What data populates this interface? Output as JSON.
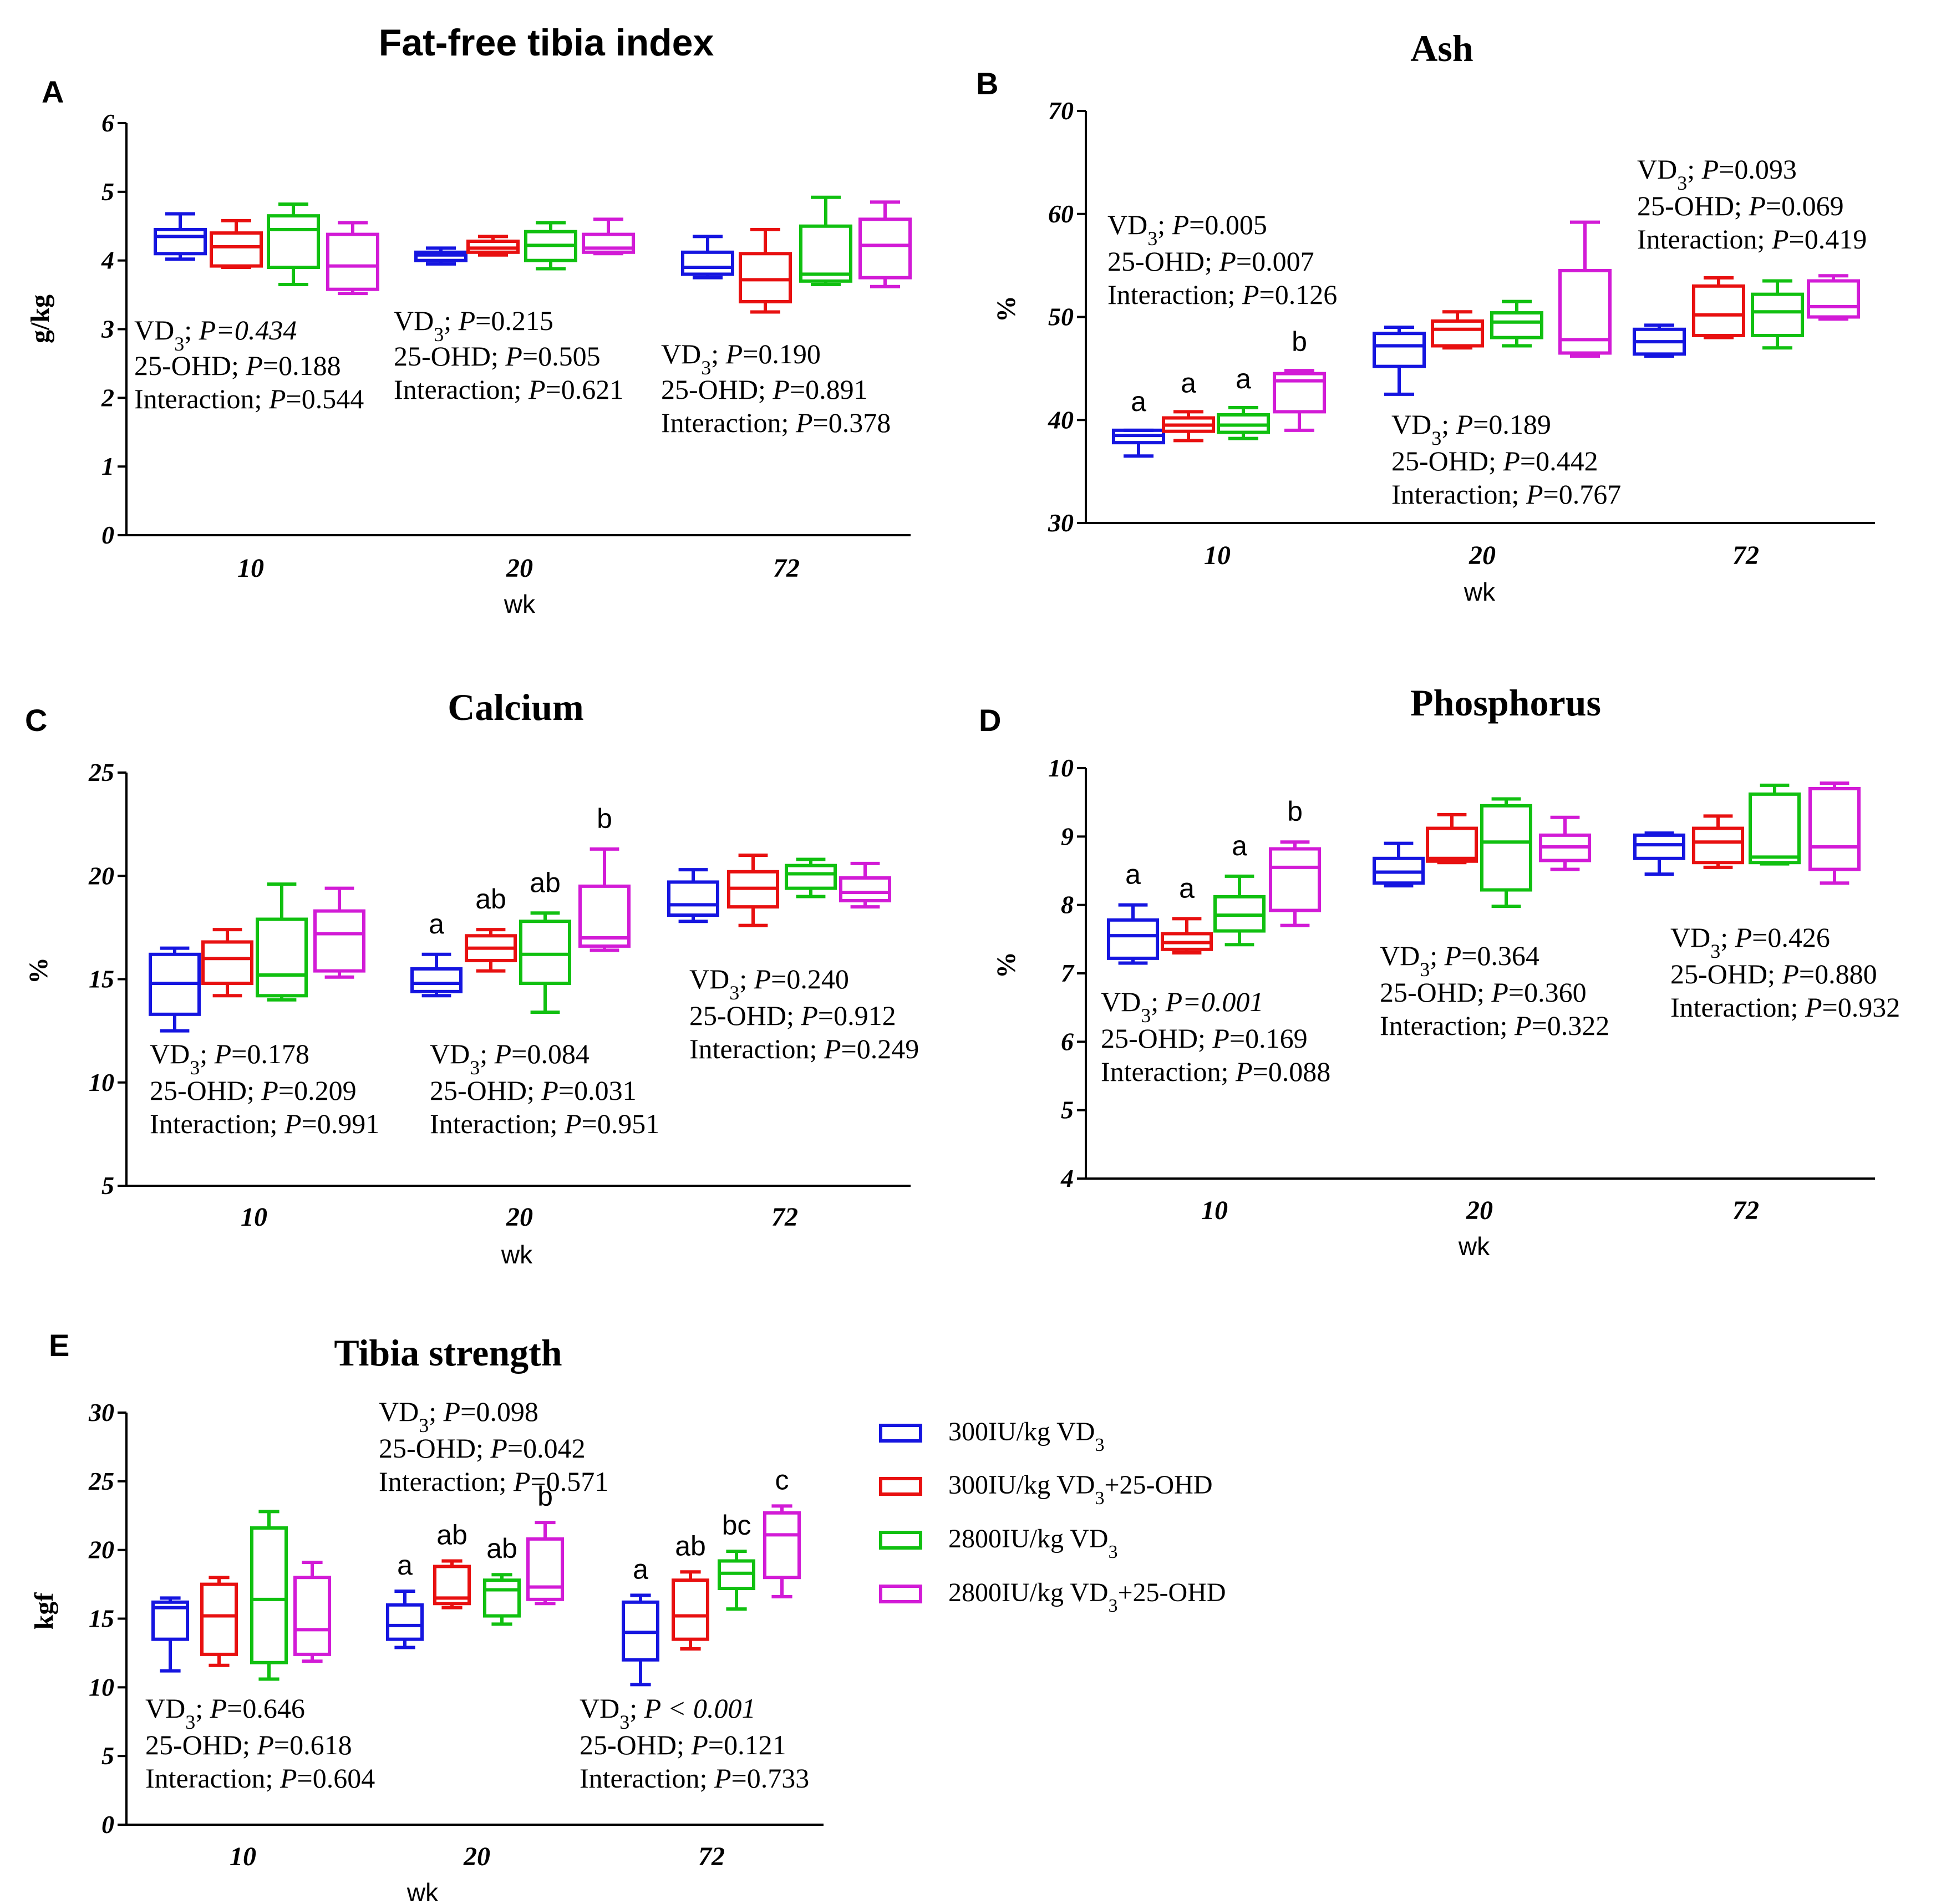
{
  "figure": {
    "groups": [
      "300IU/kg VD3",
      "300IU/kg VD3+25-OHD",
      "2800IU/kg VD3",
      "2800IU/kg VD3+25-OHD"
    ],
    "colors": [
      "#1515e0",
      "#e81010",
      "#10c010",
      "#d21bd6"
    ]
  },
  "legend": {
    "items": [
      {
        "base": "300IU/kg VD",
        "sub": "3",
        "suffix": ""
      },
      {
        "base": "300IU/kg VD",
        "sub": "3",
        "suffix": "+25-OHD"
      },
      {
        "base": "2800IU/kg VD",
        "sub": "3",
        "suffix": ""
      },
      {
        "base": "2800IU/kg VD",
        "sub": "3",
        "suffix": "+25-OHD"
      }
    ]
  },
  "chart_data": [
    {
      "panel": "A",
      "type": "box",
      "title": "Fat-free tibia index",
      "xlabel": "wk",
      "ylabel": "g/kg",
      "ylim": [
        0,
        6
      ],
      "yticks": [
        "0",
        "1",
        "2",
        "3",
        "4",
        "5",
        "6"
      ],
      "categories": [
        "10",
        "20",
        "72"
      ],
      "boxes": [
        [
          [
            4.02,
            4.1,
            4.35,
            4.45,
            4.68
          ],
          [
            3.9,
            3.92,
            4.2,
            4.4,
            4.58
          ],
          [
            3.65,
            3.9,
            4.45,
            4.65,
            4.82
          ],
          [
            3.52,
            3.58,
            3.92,
            4.38,
            4.55
          ]
        ],
        [
          [
            3.95,
            4.0,
            4.08,
            4.12,
            4.18
          ],
          [
            4.08,
            4.12,
            4.18,
            4.28,
            4.35
          ],
          [
            3.88,
            4.0,
            4.22,
            4.42,
            4.55
          ],
          [
            4.1,
            4.12,
            4.18,
            4.38,
            4.6
          ]
        ],
        [
          [
            3.75,
            3.8,
            3.9,
            4.12,
            4.35
          ],
          [
            3.25,
            3.4,
            3.72,
            4.1,
            4.45
          ],
          [
            3.65,
            3.7,
            3.8,
            4.5,
            4.92
          ],
          [
            3.62,
            3.75,
            4.22,
            4.6,
            4.85
          ]
        ]
      ],
      "letters": [
        [
          "",
          "",
          "",
          ""
        ],
        [
          "",
          "",
          "",
          ""
        ],
        [
          "",
          "",
          "",
          ""
        ]
      ],
      "stats": [
        {
          "vd3": "0.434",
          "vd3_italic": true,
          "ohd": "0.188",
          "inter": "0.544"
        },
        {
          "vd3": "0.215",
          "vd3_italic": false,
          "ohd": "0.505",
          "inter": "0.621"
        },
        {
          "vd3": "0.190",
          "vd3_italic": false,
          "ohd": "0.891",
          "inter": "0.378"
        }
      ]
    },
    {
      "panel": "B",
      "type": "box",
      "title": "Ash",
      "xlabel": "wk",
      "ylabel": "%",
      "ylim": [
        30,
        70
      ],
      "yticks": [
        "30",
        "40",
        "50",
        "60",
        "70"
      ],
      "categories": [
        "10",
        "20",
        "72"
      ],
      "boxes": [
        [
          [
            36.5,
            37.8,
            38.5,
            39.0,
            39.0
          ],
          [
            38.0,
            38.9,
            39.5,
            40.2,
            40.8
          ],
          [
            38.2,
            38.8,
            39.5,
            40.5,
            41.2
          ],
          [
            39.0,
            40.8,
            43.8,
            44.5,
            44.8
          ]
        ],
        [
          [
            42.5,
            45.2,
            47.2,
            48.4,
            49.0
          ],
          [
            47.0,
            47.2,
            48.8,
            49.6,
            50.5
          ],
          [
            47.2,
            48.0,
            49.5,
            50.4,
            51.5
          ],
          [
            46.2,
            46.5,
            47.8,
            54.5,
            59.2
          ]
        ],
        [
          [
            46.2,
            46.4,
            47.6,
            48.8,
            49.2
          ],
          [
            48.0,
            48.2,
            50.2,
            53.0,
            53.8
          ],
          [
            47.0,
            48.2,
            50.5,
            52.2,
            53.5
          ],
          [
            49.8,
            50.0,
            51.0,
            53.5,
            54.0
          ]
        ]
      ],
      "letters": [
        [
          "a",
          "a",
          "a",
          "b"
        ],
        [
          "",
          "",
          "",
          ""
        ],
        [
          "",
          "",
          "",
          ""
        ]
      ],
      "stats": [
        {
          "vd3": "0.005",
          "vd3_italic": false,
          "ohd": "0.007",
          "inter": "0.126"
        },
        {
          "vd3": "0.189",
          "vd3_italic": false,
          "ohd": "0.442",
          "inter": "0.767"
        },
        {
          "vd3": "0.093",
          "vd3_italic": false,
          "ohd": "0.069",
          "inter": "0.419"
        }
      ]
    },
    {
      "panel": "C",
      "type": "box",
      "title": "Calcium",
      "xlabel": "wk",
      "ylabel": "%",
      "ylim": [
        5,
        25
      ],
      "yticks": [
        "5",
        "10",
        "15",
        "20",
        "25"
      ],
      "categories": [
        "10",
        "20",
        "72"
      ],
      "boxes": [
        [
          [
            12.5,
            13.3,
            14.8,
            16.2,
            16.5
          ],
          [
            14.2,
            14.8,
            16.0,
            16.8,
            17.4
          ],
          [
            14.0,
            14.2,
            15.2,
            17.9,
            19.6
          ],
          [
            15.1,
            15.4,
            17.2,
            18.3,
            19.4
          ]
        ],
        [
          [
            14.2,
            14.4,
            14.8,
            15.5,
            16.2
          ],
          [
            15.4,
            15.9,
            16.5,
            17.1,
            17.4
          ],
          [
            13.4,
            14.8,
            16.2,
            17.8,
            18.2
          ],
          [
            16.4,
            16.6,
            17.0,
            19.5,
            21.3
          ]
        ],
        [
          [
            17.8,
            18.1,
            18.6,
            19.7,
            20.3
          ],
          [
            17.6,
            18.5,
            19.4,
            20.2,
            21.0
          ],
          [
            19.0,
            19.4,
            20.1,
            20.5,
            20.8
          ],
          [
            18.5,
            18.8,
            19.2,
            19.9,
            20.6
          ]
        ]
      ],
      "letters": [
        [
          "",
          "",
          "",
          ""
        ],
        [
          "a",
          "ab",
          "ab",
          "b"
        ],
        [
          "",
          "",
          "",
          ""
        ]
      ],
      "stats": [
        {
          "vd3": "0.178",
          "vd3_italic": false,
          "ohd": "0.209",
          "inter": "0.991"
        },
        {
          "vd3": "0.084",
          "vd3_italic": false,
          "ohd": "0.031",
          "inter": "0.951"
        },
        {
          "vd3": "0.240",
          "vd3_italic": false,
          "ohd": "0.912",
          "inter": "0.249"
        }
      ]
    },
    {
      "panel": "D",
      "type": "box",
      "title": "Phosphorus",
      "xlabel": "wk",
      "ylabel": "%",
      "ylim": [
        4,
        10
      ],
      "yticks": [
        "4",
        "5",
        "6",
        "7",
        "8",
        "9",
        "10"
      ],
      "categories": [
        "10",
        "20",
        "72"
      ],
      "boxes": [
        [
          [
            7.15,
            7.22,
            7.55,
            7.78,
            8.0
          ],
          [
            7.3,
            7.35,
            7.45,
            7.58,
            7.8
          ],
          [
            7.42,
            7.62,
            7.85,
            8.12,
            8.42
          ],
          [
            7.7,
            7.92,
            8.55,
            8.82,
            8.92
          ]
        ],
        [
          [
            8.28,
            8.32,
            8.48,
            8.68,
            8.9
          ],
          [
            8.62,
            8.64,
            8.68,
            9.12,
            9.32
          ],
          [
            7.98,
            8.22,
            8.92,
            9.45,
            9.55
          ],
          [
            8.52,
            8.65,
            8.85,
            9.02,
            9.28
          ]
        ],
        [
          [
            8.45,
            8.68,
            8.88,
            9.02,
            9.05
          ],
          [
            8.55,
            8.62,
            8.92,
            9.12,
            9.3
          ],
          [
            8.6,
            8.62,
            8.7,
            9.62,
            9.75
          ],
          [
            8.32,
            8.52,
            8.85,
            9.7,
            9.78
          ]
        ]
      ],
      "letters": [
        [
          "a",
          "a",
          "a",
          "b"
        ],
        [
          "",
          "",
          "",
          ""
        ],
        [
          "",
          "",
          "",
          ""
        ]
      ],
      "stats": [
        {
          "vd3": "0.001",
          "vd3_italic": true,
          "ohd": "0.169",
          "inter": "0.088"
        },
        {
          "vd3": "0.364",
          "vd3_italic": false,
          "ohd": "0.360",
          "inter": "0.322"
        },
        {
          "vd3": "0.426",
          "vd3_italic": false,
          "ohd": "0.880",
          "inter": "0.932"
        }
      ]
    },
    {
      "panel": "E",
      "type": "box",
      "title": "Tibia strength",
      "xlabel": "wk",
      "ylabel": "kgf",
      "ylim": [
        0,
        30
      ],
      "yticks": [
        "0",
        "5",
        "10",
        "15",
        "20",
        "25",
        "30"
      ],
      "categories": [
        "10",
        "20",
        "72"
      ],
      "boxes": [
        [
          [
            11.2,
            13.5,
            15.8,
            16.2,
            16.5
          ],
          [
            11.6,
            12.4,
            15.2,
            17.5,
            18.0
          ],
          [
            10.6,
            11.8,
            16.4,
            21.6,
            22.8
          ],
          [
            11.9,
            12.4,
            14.2,
            18.0,
            19.1
          ]
        ],
        [
          [
            12.9,
            13.5,
            14.5,
            16.0,
            17.0
          ],
          [
            15.8,
            16.1,
            16.5,
            18.8,
            19.2
          ],
          [
            14.6,
            15.2,
            17.1,
            17.8,
            18.2
          ],
          [
            16.1,
            16.4,
            17.3,
            20.8,
            22.0
          ]
        ],
        [
          [
            10.2,
            12.0,
            14.0,
            16.2,
            16.7
          ],
          [
            12.8,
            13.5,
            15.2,
            17.8,
            18.4
          ],
          [
            15.7,
            17.2,
            18.3,
            19.2,
            19.9
          ],
          [
            16.6,
            18.0,
            21.1,
            22.7,
            23.2
          ]
        ]
      ],
      "letters": [
        [
          "",
          "",
          "",
          ""
        ],
        [
          "a",
          "ab",
          "ab",
          "b"
        ],
        [
          "a",
          "ab",
          "bc",
          "c"
        ]
      ],
      "stats": [
        {
          "vd3": "0.646",
          "vd3_italic": false,
          "ohd": "0.618",
          "inter": "0.604"
        },
        {
          "vd3": "0.098",
          "vd3_italic": false,
          "ohd": "0.042",
          "inter": "0.571"
        },
        {
          "vd3": "< 0.001",
          "vd3_italic": true,
          "ohd": "0.121",
          "inter": "0.733"
        }
      ]
    }
  ],
  "stat_labels": {
    "vd3": "VD",
    "vd3_sub": "3",
    "ohd": "25-OHD",
    "inter": "Interaction",
    "p": "P"
  }
}
